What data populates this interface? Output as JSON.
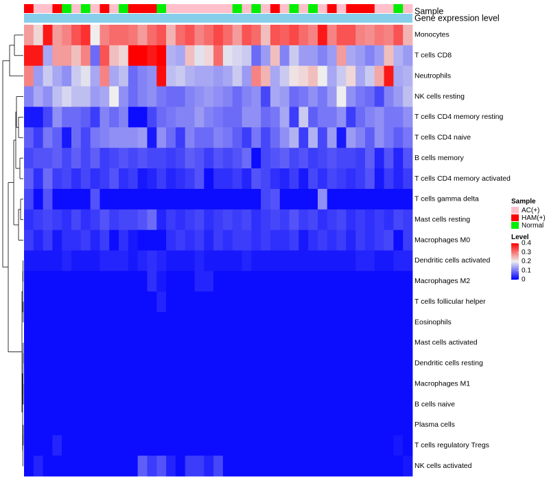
{
  "chart_data": {
    "type": "heatmap",
    "annotations": {
      "sample_label": "Sample",
      "gene_label": "Gene expression level"
    },
    "sample_groups": [
      "HAM(+)",
      "AC(+)",
      "AC(+)",
      "HAM(+)",
      "Normal",
      "AC(+)",
      "Normal",
      "AC(+)",
      "HAM(+)",
      "AC(+)",
      "Normal",
      "HAM(+)",
      "HAM(+)",
      "HAM(+)",
      "Normal",
      "AC(+)",
      "AC(+)",
      "AC(+)",
      "AC(+)",
      "AC(+)",
      "AC(+)",
      "AC(+)",
      "Normal",
      "AC(+)",
      "Normal",
      "AC(+)",
      "HAM(+)",
      "AC(+)",
      "Normal",
      "AC(+)",
      "Normal",
      "AC(+)",
      "HAM(+)",
      "AC(+)",
      "HAM(+)",
      "HAM(+)",
      "HAM(+)",
      "AC(+)",
      "AC(+)",
      "Normal",
      "AC(+)"
    ],
    "rows": [
      "Monocytes",
      "T cells CD8",
      "Neutrophils",
      "NK cells resting",
      "T cells CD4 memory resting",
      "T cells CD4 naive",
      "B cells memory",
      "T cells CD4 memory activated",
      "T cells gamma delta",
      "Mast cells resting",
      "Macrophages M0",
      "Dendritic cells activated",
      "Macrophages M2",
      "T cells follicular helper",
      "Eosinophils",
      "Mast cells activated",
      "Dendritic cells resting",
      "Macrophages M1",
      "B cells naive",
      "Plasma cells",
      "T cells regulatory  Tregs",
      "NK cells activated"
    ],
    "values": [
      [
        0.27,
        0.22,
        0.38,
        0.27,
        0.29,
        0.33,
        0.36,
        0.2,
        0.29,
        0.31,
        0.31,
        0.3,
        0.27,
        0.31,
        0.33,
        0.25,
        0.31,
        0.33,
        0.29,
        0.31,
        0.34,
        0.31,
        0.27,
        0.33,
        0.31,
        0.24,
        0.33,
        0.32,
        0.34,
        0.31,
        0.29,
        0.38,
        0.29,
        0.33,
        0.33,
        0.29,
        0.28,
        0.3,
        0.29,
        0.33,
        0.25
      ],
      [
        0.38,
        0.38,
        0.14,
        0.27,
        0.27,
        0.24,
        0.29,
        0.09,
        0.33,
        0.24,
        0.22,
        0.4,
        0.4,
        0.38,
        0.4,
        0.15,
        0.14,
        0.24,
        0.19,
        0.22,
        0.31,
        0.19,
        0.18,
        0.17,
        0.09,
        0.13,
        0.24,
        0.11,
        0.17,
        0.13,
        0.13,
        0.11,
        0.13,
        0.27,
        0.14,
        0.13,
        0.11,
        0.13,
        0.24,
        0.15,
        0.13
      ],
      [
        0.29,
        0.13,
        0.17,
        0.14,
        0.12,
        0.17,
        0.19,
        0.14,
        0.29,
        0.14,
        0.16,
        0.09,
        0.11,
        0.12,
        0.39,
        0.16,
        0.17,
        0.15,
        0.14,
        0.14,
        0.13,
        0.14,
        0.17,
        0.13,
        0.29,
        0.25,
        0.14,
        0.17,
        0.21,
        0.22,
        0.24,
        0.2,
        0.14,
        0.17,
        0.22,
        0.14,
        0.17,
        0.26,
        0.38,
        0.14,
        0.15
      ],
      [
        0.11,
        0.14,
        0.12,
        0.16,
        0.18,
        0.16,
        0.16,
        0.13,
        0.14,
        0.2,
        0.12,
        0.09,
        0.11,
        0.12,
        0.1,
        0.09,
        0.09,
        0.11,
        0.12,
        0.13,
        0.12,
        0.11,
        0.09,
        0.11,
        0.12,
        0.06,
        0.14,
        0.13,
        0.09,
        0.1,
        0.12,
        0.1,
        0.13,
        0.2,
        0.12,
        0.1,
        0.09,
        0.06,
        0.11,
        0.13,
        0.16
      ],
      [
        0.02,
        0.02,
        0.06,
        0.12,
        0.09,
        0.09,
        0.08,
        0.05,
        0.11,
        0.09,
        0.11,
        0.01,
        0.01,
        0.06,
        0.09,
        0.1,
        0.11,
        0.11,
        0.13,
        0.11,
        0.1,
        0.09,
        0.09,
        0.12,
        0.12,
        0.09,
        0.1,
        0.14,
        0.05,
        0.17,
        0.08,
        0.1,
        0.1,
        0.12,
        0.05,
        0.09,
        0.11,
        0.12,
        0.1,
        0.1,
        0.12
      ],
      [
        0.08,
        0.05,
        0.1,
        0.08,
        0.02,
        0.09,
        0.06,
        0.1,
        0.11,
        0.12,
        0.12,
        0.12,
        0.13,
        0.02,
        0.12,
        0.09,
        0.05,
        0.11,
        0.09,
        0.09,
        0.11,
        0.1,
        0.08,
        0.05,
        0.1,
        0.06,
        0.09,
        0.12,
        0.15,
        0.05,
        0.15,
        0.06,
        0.13,
        0.02,
        0.13,
        0.11,
        0.08,
        0.12,
        0.1,
        0.08,
        0.1
      ],
      [
        0.06,
        0.07,
        0.07,
        0.08,
        0.06,
        0.08,
        0.06,
        0.08,
        0.05,
        0.06,
        0.07,
        0.06,
        0.07,
        0.06,
        0.06,
        0.05,
        0.06,
        0.08,
        0.07,
        0.05,
        0.07,
        0.06,
        0.07,
        0.09,
        0.01,
        0.06,
        0.07,
        0.08,
        0.06,
        0.07,
        0.05,
        0.06,
        0.07,
        0.06,
        0.06,
        0.05,
        0.08,
        0.03,
        0.07,
        0.03,
        0.07
      ],
      [
        0.08,
        0.04,
        0.09,
        0.05,
        0.06,
        0.04,
        0.06,
        0.04,
        0.05,
        0.07,
        0.04,
        0.05,
        0.02,
        0.03,
        0.05,
        0.03,
        0.04,
        0.05,
        0.07,
        0.01,
        0.04,
        0.04,
        0.05,
        0.03,
        0.07,
        0.06,
        0.04,
        0.03,
        0.05,
        0.02,
        0.06,
        0.04,
        0.06,
        0.05,
        0.04,
        0.05,
        0.07,
        0.02,
        0.05,
        0.03,
        0.05
      ],
      [
        0.06,
        0.01,
        0.07,
        0.01,
        0.01,
        0.01,
        0.01,
        0.07,
        0.01,
        0.01,
        0.01,
        0.01,
        0.01,
        0.01,
        0.01,
        0.01,
        0.01,
        0.01,
        0.01,
        0.01,
        0.01,
        0.01,
        0.01,
        0.01,
        0.01,
        0.06,
        0.07,
        0.01,
        0.01,
        0.01,
        0.01,
        0.12,
        0.01,
        0.01,
        0.01,
        0.01,
        0.01,
        0.01,
        0.01,
        0.01,
        0.01
      ],
      [
        0.04,
        0.05,
        0.06,
        0.05,
        0.04,
        0.06,
        0.04,
        0.05,
        0.07,
        0.05,
        0.06,
        0.06,
        0.07,
        0.09,
        0.03,
        0.05,
        0.04,
        0.05,
        0.06,
        0.04,
        0.05,
        0.06,
        0.05,
        0.06,
        0.04,
        0.05,
        0.06,
        0.05,
        0.07,
        0.05,
        0.06,
        0.04,
        0.05,
        0.06,
        0.04,
        0.05,
        0.04,
        0.05,
        0.04,
        0.06,
        0.05
      ],
      [
        0.05,
        0.03,
        0.05,
        0.02,
        0.04,
        0.04,
        0.05,
        0.03,
        0.05,
        0.01,
        0.04,
        0.02,
        0.01,
        0.01,
        0.01,
        0.04,
        0.05,
        0.04,
        0.05,
        0.03,
        0.05,
        0.04,
        0.05,
        0.05,
        0.04,
        0.05,
        0.04,
        0.04,
        0.05,
        0.02,
        0.04,
        0.05,
        0.04,
        0.05,
        0.03,
        0.05,
        0.04,
        0.05,
        0.06,
        0.01,
        0.05
      ],
      [
        0.02,
        0.02,
        0.02,
        0.02,
        0.03,
        0.02,
        0.02,
        0.02,
        0.03,
        0.03,
        0.03,
        0.02,
        0.03,
        0.04,
        0.03,
        0.02,
        0.02,
        0.02,
        0.03,
        0.02,
        0.02,
        0.02,
        0.02,
        0.03,
        0.02,
        0.02,
        0.02,
        0.02,
        0.02,
        0.02,
        0.02,
        0.02,
        0.02,
        0.02,
        0.02,
        0.03,
        0.03,
        0.02,
        0.02,
        0.03,
        0.03
      ],
      [
        0.01,
        0.01,
        0.01,
        0.01,
        0.01,
        0.01,
        0.01,
        0.01,
        0.01,
        0.01,
        0.01,
        0.01,
        0.01,
        0.04,
        0.02,
        0.01,
        0.01,
        0.01,
        0.03,
        0.03,
        0.01,
        0.01,
        0.01,
        0.01,
        0.01,
        0.01,
        0.01,
        0.01,
        0.01,
        0.01,
        0.01,
        0.01,
        0.01,
        0.01,
        0.01,
        0.01,
        0.01,
        0.01,
        0.01,
        0.01,
        0.01
      ],
      [
        0.01,
        0.01,
        0.01,
        0.01,
        0.01,
        0.01,
        0.01,
        0.01,
        0.01,
        0.01,
        0.01,
        0.01,
        0.01,
        0.01,
        0.03,
        0.01,
        0.01,
        0.01,
        0.01,
        0.01,
        0.01,
        0.01,
        0.01,
        0.01,
        0.01,
        0.01,
        0.01,
        0.01,
        0.01,
        0.01,
        0.01,
        0.01,
        0.01,
        0.01,
        0.01,
        0.01,
        0.01,
        0.01,
        0.01,
        0.01,
        0.01
      ],
      [
        0.01,
        0.01,
        0.01,
        0.01,
        0.01,
        0.01,
        0.01,
        0.01,
        0.01,
        0.01,
        0.01,
        0.01,
        0.01,
        0.01,
        0.01,
        0.01,
        0.01,
        0.01,
        0.01,
        0.01,
        0.01,
        0.01,
        0.01,
        0.01,
        0.01,
        0.01,
        0.01,
        0.01,
        0.01,
        0.01,
        0.01,
        0.01,
        0.01,
        0.01,
        0.01,
        0.01,
        0.01,
        0.01,
        0.01,
        0.01,
        0.01
      ],
      [
        0.01,
        0.01,
        0.01,
        0.01,
        0.01,
        0.01,
        0.01,
        0.01,
        0.01,
        0.01,
        0.01,
        0.01,
        0.01,
        0.01,
        0.01,
        0.01,
        0.01,
        0.01,
        0.01,
        0.01,
        0.01,
        0.01,
        0.01,
        0.01,
        0.01,
        0.01,
        0.01,
        0.01,
        0.01,
        0.01,
        0.01,
        0.01,
        0.01,
        0.01,
        0.01,
        0.01,
        0.01,
        0.01,
        0.01,
        0.01,
        0.01
      ],
      [
        0.01,
        0.01,
        0.01,
        0.01,
        0.01,
        0.01,
        0.01,
        0.01,
        0.01,
        0.01,
        0.01,
        0.01,
        0.01,
        0.01,
        0.01,
        0.01,
        0.01,
        0.01,
        0.01,
        0.01,
        0.01,
        0.01,
        0.01,
        0.01,
        0.01,
        0.01,
        0.01,
        0.01,
        0.01,
        0.01,
        0.01,
        0.01,
        0.01,
        0.01,
        0.01,
        0.01,
        0.01,
        0.01,
        0.01,
        0.01,
        0.01
      ],
      [
        0.01,
        0.01,
        0.01,
        0.01,
        0.01,
        0.01,
        0.01,
        0.01,
        0.01,
        0.01,
        0.01,
        0.01,
        0.01,
        0.01,
        0.01,
        0.01,
        0.01,
        0.01,
        0.01,
        0.01,
        0.01,
        0.01,
        0.01,
        0.01,
        0.01,
        0.01,
        0.01,
        0.01,
        0.01,
        0.01,
        0.01,
        0.01,
        0.01,
        0.01,
        0.01,
        0.01,
        0.01,
        0.01,
        0.01,
        0.01,
        0.01
      ],
      [
        0.01,
        0.01,
        0.01,
        0.01,
        0.01,
        0.01,
        0.01,
        0.01,
        0.01,
        0.01,
        0.01,
        0.01,
        0.01,
        0.01,
        0.01,
        0.01,
        0.01,
        0.01,
        0.01,
        0.01,
        0.01,
        0.01,
        0.01,
        0.01,
        0.01,
        0.01,
        0.01,
        0.01,
        0.01,
        0.01,
        0.01,
        0.01,
        0.01,
        0.01,
        0.01,
        0.01,
        0.01,
        0.01,
        0.01,
        0.01,
        0.01
      ],
      [
        0.01,
        0.01,
        0.01,
        0.01,
        0.01,
        0.01,
        0.01,
        0.01,
        0.01,
        0.01,
        0.01,
        0.01,
        0.01,
        0.01,
        0.01,
        0.01,
        0.01,
        0.01,
        0.01,
        0.01,
        0.01,
        0.01,
        0.01,
        0.01,
        0.01,
        0.01,
        0.01,
        0.01,
        0.01,
        0.01,
        0.01,
        0.01,
        0.01,
        0.01,
        0.01,
        0.01,
        0.01,
        0.01,
        0.01,
        0.01,
        0.01
      ],
      [
        0.01,
        0.01,
        0.01,
        0.03,
        0.01,
        0.01,
        0.01,
        0.01,
        0.01,
        0.01,
        0.01,
        0.01,
        0.01,
        0.01,
        0.01,
        0.01,
        0.01,
        0.01,
        0.01,
        0.01,
        0.01,
        0.01,
        0.01,
        0.01,
        0.01,
        0.01,
        0.01,
        0.01,
        0.01,
        0.01,
        0.01,
        0.01,
        0.01,
        0.01,
        0.01,
        0.01,
        0.01,
        0.01,
        0.01,
        0.02,
        0.01
      ],
      [
        0.01,
        0.03,
        0.01,
        0.01,
        0.01,
        0.01,
        0.01,
        0.01,
        0.01,
        0.01,
        0.01,
        0.01,
        0.08,
        0.05,
        0.07,
        0.03,
        0.01,
        0.05,
        0.05,
        0.03,
        0.06,
        0.01,
        0.01,
        0.01,
        0.01,
        0.01,
        0.01,
        0.01,
        0.01,
        0.01,
        0.01,
        0.01,
        0.01,
        0.01,
        0.01,
        0.01,
        0.01,
        0.01,
        0.01,
        0.01,
        0.02
      ]
    ],
    "legend": {
      "sample_title": "Sample",
      "sample_entries": [
        {
          "label": "AC(+)",
          "color": "#ffc0cb"
        },
        {
          "label": "HAM(+)",
          "color": "#ff0000"
        },
        {
          "label": "Normal",
          "color": "#00ee00"
        }
      ],
      "level_title": "Level",
      "level_ticks": [
        "0.4",
        "0.3",
        "0.2",
        "0.1",
        "0"
      ]
    },
    "color_scale": {
      "low": "#0000ff",
      "mid": "#eeeeee",
      "high": "#ff0000",
      "range": [
        0,
        0.4
      ],
      "mid_value": 0.2
    },
    "gene_expression_color": "#87ceeb",
    "level_range": [
      0,
      0.4
    ]
  }
}
